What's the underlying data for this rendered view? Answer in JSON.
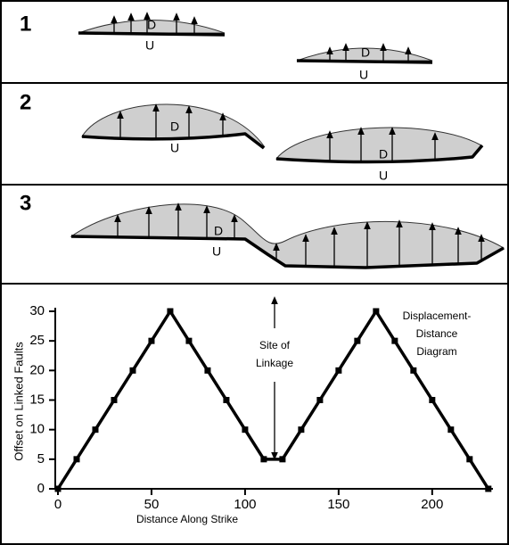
{
  "panels": [
    {
      "label": "1",
      "faults": [
        {
          "upthrown": "D",
          "downthrown": "U"
        },
        {
          "upthrown": "D",
          "downthrown": "U"
        }
      ]
    },
    {
      "label": "2",
      "faults": [
        {
          "upthrown": "D",
          "downthrown": "U"
        },
        {
          "upthrown": "D",
          "downthrown": "U"
        }
      ]
    },
    {
      "label": "3",
      "faults": [
        {
          "upthrown": "D",
          "downthrown": "U"
        }
      ]
    }
  ],
  "chart_data": {
    "type": "line",
    "x_label": "Distance Along Strike",
    "y_label": "Offset on Linked Faults",
    "annotations": [
      {
        "lines": [
          "Site of",
          "Linkage"
        ]
      },
      {
        "lines": [
          "Displacement-",
          "Distance",
          "Diagram"
        ]
      }
    ],
    "x": [
      0,
      10,
      20,
      30,
      40,
      50,
      60,
      70,
      80,
      90,
      100,
      110,
      120,
      130,
      140,
      150,
      160,
      170,
      180,
      190,
      200,
      210,
      220,
      230
    ],
    "series": [
      {
        "color": "#000000",
        "values": [
          0,
          5,
          10,
          15,
          20,
          25,
          30,
          25,
          20,
          15,
          10,
          5,
          5,
          10,
          15,
          20,
          25,
          30,
          25,
          20,
          15,
          10,
          5,
          0
        ]
      }
    ],
    "xlim": [
      0,
      232
    ],
    "ylim": [
      0,
      30
    ],
    "xticks": [
      0,
      50,
      100,
      150,
      200
    ],
    "yticks": [
      0,
      5,
      10,
      15,
      20,
      25,
      30
    ]
  }
}
